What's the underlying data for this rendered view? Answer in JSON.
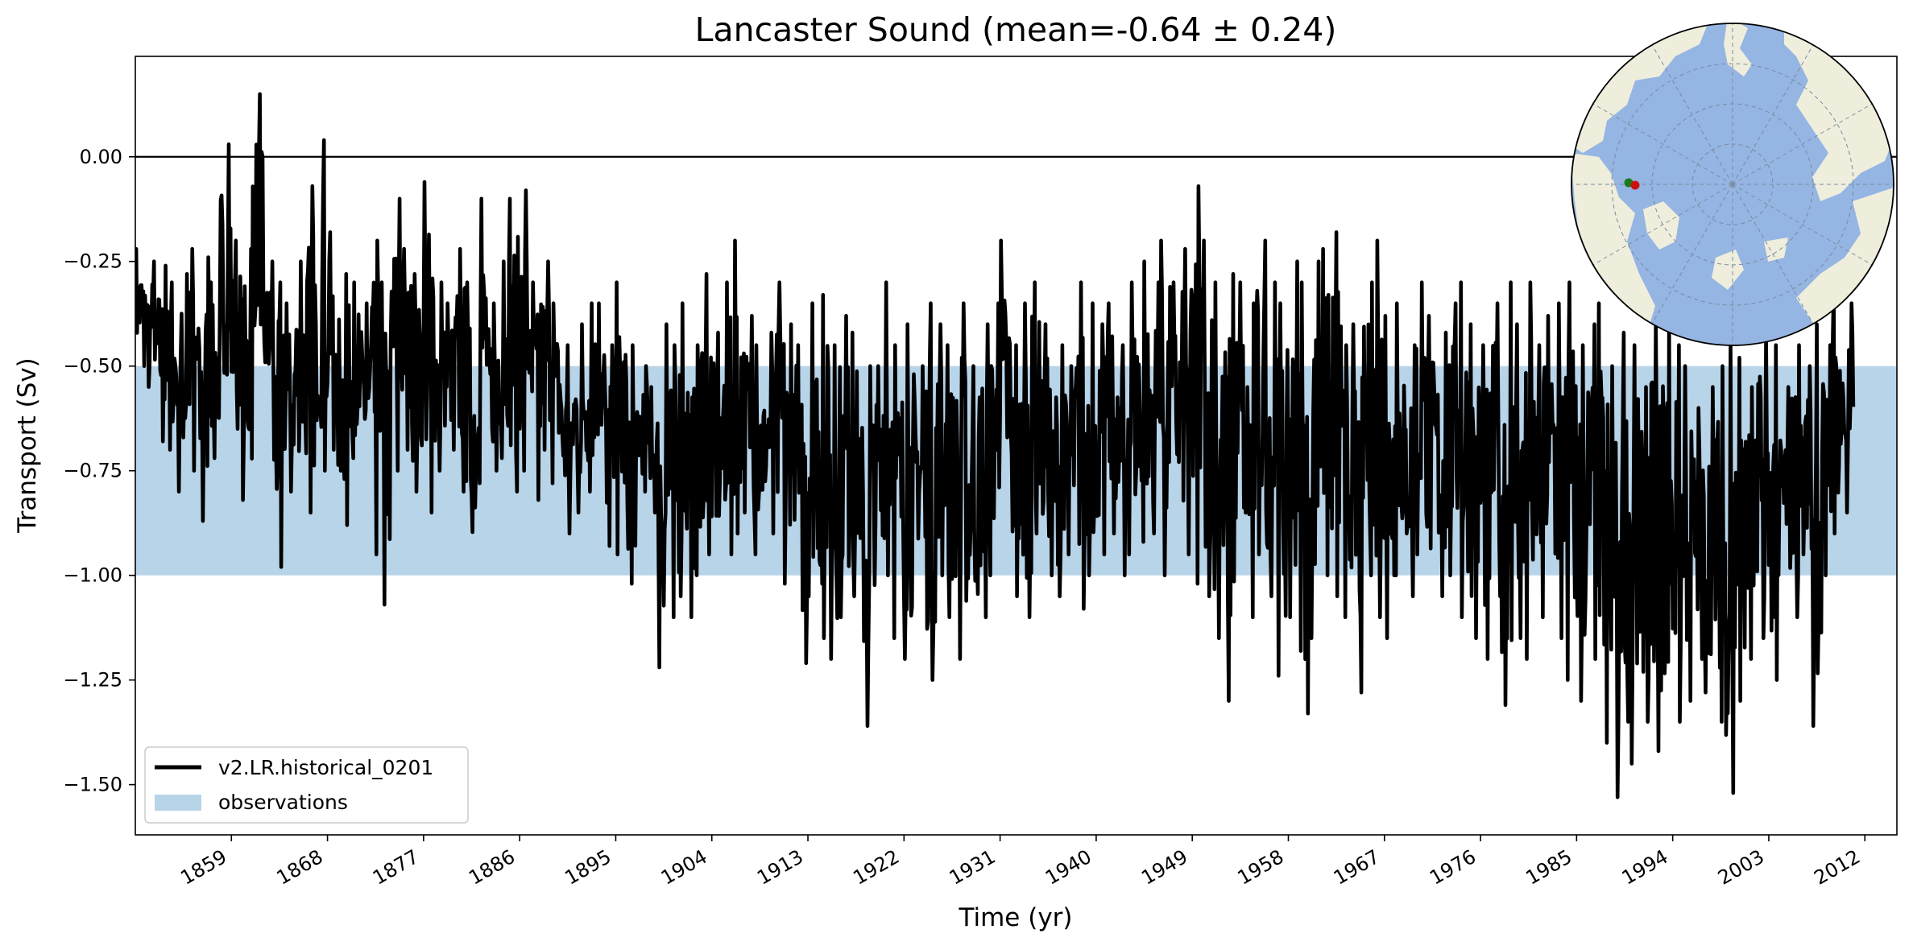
{
  "chart_data": {
    "type": "line",
    "title": "Lancaster Sound (mean=-0.64 ± 0.24)",
    "xlabel": "Time (yr)",
    "ylabel": "Transport (Sv)",
    "xlim": [
      1850,
      2015
    ],
    "ylim": [
      -1.62,
      0.24
    ],
    "xticks": [
      1859,
      1868,
      1877,
      1886,
      1895,
      1904,
      1913,
      1922,
      1931,
      1940,
      1949,
      1958,
      1967,
      1976,
      1985,
      1994,
      2003,
      2012
    ],
    "yticks": [
      0.0,
      -0.25,
      -0.5,
      -0.75,
      -1.0,
      -1.25,
      -1.5
    ],
    "ytick_labels": [
      "0.00",
      "−0.25",
      "−0.50",
      "−0.75",
      "−1.00",
      "−1.25",
      "−1.50"
    ],
    "reference_line": 0.0,
    "observation_band": {
      "name": "observations",
      "low": -1.0,
      "high": -0.5,
      "color": "#b8d4e9"
    },
    "series": [
      {
        "name": "v2.LR.historical_0201",
        "color": "#000000",
        "note": "approximate annual-scale envelope of the monthly series",
        "x": [
          1850,
          1851,
          1852,
          1853,
          1854,
          1855,
          1856,
          1857,
          1858,
          1859,
          1860,
          1861,
          1862,
          1863,
          1864,
          1865,
          1866,
          1867,
          1868,
          1869,
          1870,
          1871,
          1872,
          1873,
          1874,
          1875,
          1876,
          1877,
          1878,
          1879,
          1880,
          1881,
          1882,
          1883,
          1884,
          1885,
          1886,
          1887,
          1888,
          1889,
          1890,
          1891,
          1892,
          1893,
          1894,
          1895,
          1896,
          1897,
          1898,
          1899,
          1900,
          1901,
          1902,
          1903,
          1904,
          1905,
          1906,
          1907,
          1908,
          1909,
          1910,
          1911,
          1912,
          1913,
          1914,
          1915,
          1916,
          1917,
          1918,
          1919,
          1920,
          1921,
          1922,
          1923,
          1924,
          1925,
          1926,
          1927,
          1928,
          1929,
          1930,
          1931,
          1932,
          1933,
          1934,
          1935,
          1936,
          1937,
          1938,
          1939,
          1940,
          1941,
          1942,
          1943,
          1944,
          1945,
          1946,
          1947,
          1948,
          1949,
          1950,
          1951,
          1952,
          1953,
          1954,
          1955,
          1956,
          1957,
          1958,
          1959,
          1960,
          1961,
          1962,
          1963,
          1964,
          1965,
          1966,
          1967,
          1968,
          1969,
          1970,
          1971,
          1972,
          1973,
          1974,
          1975,
          1976,
          1977,
          1978,
          1979,
          1980,
          1981,
          1982,
          1983,
          1984,
          1985,
          1986,
          1987,
          1988,
          1989,
          1990,
          1991,
          1992,
          1993,
          1994,
          1995,
          1996,
          1997,
          1998,
          1999,
          2000,
          2001,
          2002,
          2003,
          2004,
          2005,
          2006,
          2007,
          2008,
          2009,
          2010,
          2011,
          2012,
          2013,
          2014
        ],
        "max": [
          -0.22,
          -0.25,
          -0.26,
          -0.3,
          -0.28,
          -0.22,
          -0.24,
          -0.3,
          0.03,
          -0.2,
          -0.22,
          0.15,
          -0.25,
          -0.3,
          -0.35,
          -0.25,
          -0.07,
          0.04,
          -0.18,
          -0.28,
          -0.3,
          -0.35,
          -0.2,
          -0.3,
          -0.1,
          -0.22,
          -0.28,
          -0.06,
          -0.3,
          -0.35,
          -0.22,
          -0.3,
          -0.1,
          -0.35,
          -0.25,
          -0.1,
          -0.08,
          -0.3,
          -0.25,
          -0.35,
          -0.45,
          -0.4,
          -0.35,
          -0.35,
          -0.45,
          -0.3,
          -0.45,
          -0.5,
          -0.55,
          -0.4,
          -0.45,
          -0.35,
          -0.45,
          -0.28,
          -0.42,
          -0.3,
          -0.2,
          -0.38,
          -0.45,
          -0.42,
          -0.3,
          -0.4,
          -0.45,
          -0.35,
          -0.33,
          -0.45,
          -0.38,
          -0.42,
          -0.5,
          -0.5,
          -0.3,
          -0.45,
          -0.4,
          -0.5,
          -0.35,
          -0.4,
          -0.45,
          -0.35,
          -0.5,
          -0.4,
          -0.35,
          -0.2,
          -0.45,
          -0.35,
          -0.3,
          -0.4,
          -0.45,
          -0.5,
          -0.3,
          -0.35,
          -0.4,
          -0.35,
          -0.45,
          -0.3,
          -0.25,
          -0.3,
          -0.2,
          -0.3,
          -0.22,
          -0.07,
          -0.2,
          -0.3,
          -0.28,
          -0.3,
          -0.35,
          -0.2,
          -0.3,
          -0.35,
          -0.25,
          -0.3,
          -0.25,
          -0.22,
          -0.18,
          -0.45,
          -0.4,
          -0.3,
          -0.2,
          -0.38,
          -0.35,
          -0.45,
          -0.3,
          -0.38,
          -0.42,
          -0.35,
          -0.3,
          -0.4,
          -0.45,
          -0.35,
          -0.3,
          -0.4,
          -0.3,
          -0.45,
          -0.38,
          -0.35,
          -0.3,
          -0.45,
          -0.4,
          -0.35,
          -0.5,
          -0.42,
          -0.45,
          -0.55,
          -0.4,
          -0.38,
          -0.45,
          -0.5,
          -0.6,
          -0.55,
          -0.5,
          -0.45,
          -0.48,
          -0.55,
          -0.42,
          -0.45,
          -0.55,
          -0.45,
          -0.5,
          -0.4,
          -0.45,
          -0.3,
          -0.35,
          -0.28,
          -0.25,
          -0.3,
          -0.35
        ],
        "min": [
          -0.5,
          -0.55,
          -0.68,
          -0.7,
          -0.8,
          -0.75,
          -0.87,
          -0.72,
          -0.6,
          -0.65,
          -0.82,
          -0.5,
          -0.6,
          -0.98,
          -0.8,
          -0.78,
          -0.85,
          -0.75,
          -0.7,
          -0.88,
          -0.72,
          -0.8,
          -0.95,
          -1.07,
          -0.75,
          -0.7,
          -0.8,
          -0.85,
          -0.75,
          -0.7,
          -0.8,
          -1.0,
          -0.78,
          -0.75,
          -0.72,
          -0.8,
          -0.75,
          -0.82,
          -0.7,
          -0.78,
          -0.9,
          -0.85,
          -0.8,
          -0.75,
          -0.93,
          -0.95,
          -1.02,
          -0.8,
          -0.85,
          -1.22,
          -1.1,
          -1.05,
          -1.1,
          -0.95,
          -1.0,
          -0.95,
          -0.9,
          -0.85,
          -0.95,
          -0.9,
          -1.02,
          -0.95,
          -1.21,
          -1.05,
          -1.15,
          -1.2,
          -1.1,
          -1.05,
          -1.36,
          -1.1,
          -1.0,
          -1.15,
          -1.2,
          -1.0,
          -1.25,
          -1.0,
          -1.1,
          -1.2,
          -1.15,
          -1.1,
          -1.0,
          -0.95,
          -1.05,
          -1.1,
          -0.9,
          -1.0,
          -1.05,
          -0.95,
          -1.08,
          -1.0,
          -0.95,
          -0.9,
          -1.0,
          -0.95,
          -0.92,
          -0.9,
          -1.0,
          -0.9,
          -0.95,
          -1.02,
          -1.05,
          -1.15,
          -1.3,
          -1.0,
          -1.1,
          -0.95,
          -1.05,
          -1.24,
          -1.1,
          -1.33,
          -1.15,
          -1.0,
          -1.05,
          -1.1,
          -1.28,
          -1.0,
          -1.1,
          -1.15,
          -1.0,
          -1.05,
          -0.95,
          -1.1,
          -1.05,
          -1.0,
          -1.1,
          -1.15,
          -1.2,
          -1.05,
          -1.31,
          -1.15,
          -1.2,
          -1.1,
          -1.05,
          -1.15,
          -1.25,
          -1.3,
          -1.2,
          -1.4,
          -1.53,
          -1.35,
          -1.45,
          -1.35,
          -1.42,
          -1.4,
          -1.35,
          -1.3,
          -1.2,
          -1.28,
          -1.35,
          -1.52,
          -1.3,
          -1.2,
          -1.15,
          -1.25,
          -1.05,
          -1.1,
          -0.95,
          -1.36,
          -1.0,
          -0.9,
          -0.85
        ]
      }
    ],
    "legend": {
      "placement": "lower-left",
      "entries": [
        {
          "label": "v2.LR.historical_0201",
          "kind": "line",
          "color": "#000000"
        },
        {
          "label": "observations",
          "kind": "patch",
          "color": "#b8d4e9"
        }
      ]
    },
    "inset_map": {
      "projection": "north-polar-stereographic",
      "ocean_color": "#95b5e2",
      "land_color": "#efeedc",
      "markers": [
        {
          "name": "section-start",
          "color": "#1a7a1a"
        },
        {
          "name": "section-end",
          "color": "#cc1111"
        }
      ]
    }
  }
}
